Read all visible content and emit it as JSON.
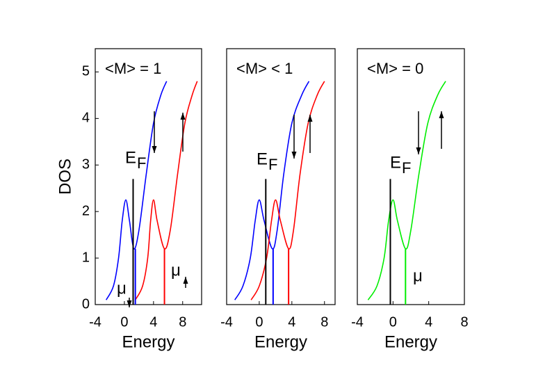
{
  "chart_data": [
    {
      "type": "line",
      "title": "<M> = 1",
      "xlabel": "Energy",
      "ylabel": "DOS",
      "xlim": [
        -4,
        10.6
      ],
      "ylim": [
        0,
        5.5
      ],
      "xticks": [
        -4,
        0,
        4,
        8
      ],
      "yticks": [
        0,
        1,
        2,
        3,
        4,
        5
      ],
      "series": [
        {
          "color": "#0000ff",
          "x": [
            -2.5,
            -1.5,
            -0.8,
            -0.3,
            0.2,
            0.7,
            1.3,
            2,
            3,
            4,
            5,
            5.8
          ],
          "values": [
            0.1,
            0.4,
            1.0,
            1.8,
            2.25,
            1.8,
            1.2,
            1.6,
            2.8,
            3.9,
            4.5,
            4.8
          ]
        },
        {
          "color": "#ff0000",
          "x": [
            1.5,
            2.5,
            3.2,
            3.6,
            4,
            4.5,
            5.5,
            6.3,
            7.3,
            8.3,
            9.3,
            10
          ],
          "values": [
            0.1,
            0.4,
            1.0,
            1.8,
            2.25,
            1.8,
            1.2,
            1.6,
            2.8,
            3.9,
            4.5,
            4.8
          ]
        }
      ],
      "markers": [
        {
          "x": 1.2,
          "top": 2.7,
          "color": "#000000"
        },
        {
          "x": 1.5,
          "top": 1.2,
          "color": "#0000ff"
        },
        {
          "x": 5.5,
          "top": 1.2,
          "color": "#ff0000"
        }
      ],
      "annotations": [
        "E",
        "F",
        "μ",
        "μ"
      ]
    },
    {
      "type": "line",
      "title": "<M> < 1",
      "xlabel": "Energy",
      "xlim": [
        -4,
        9.3
      ],
      "ylim": [
        0,
        5.5
      ],
      "xticks": [
        -4,
        0,
        4,
        8
      ],
      "series": [
        {
          "color": "#0000ff",
          "x": [
            -3,
            -2,
            -1.1,
            -0.5,
            0,
            0.6,
            1.6,
            2.2,
            3,
            4,
            5.2,
            6.1
          ],
          "values": [
            0.1,
            0.4,
            1.0,
            1.8,
            2.25,
            1.8,
            1.2,
            1.6,
            2.8,
            3.9,
            4.5,
            4.8
          ]
        },
        {
          "color": "#ff0000",
          "x": [
            -1,
            0,
            0.9,
            1.5,
            2,
            2.6,
            3.6,
            4.2,
            5,
            6,
            7.1,
            8
          ],
          "values": [
            0.1,
            0.4,
            1.0,
            1.8,
            2.25,
            1.8,
            1.2,
            1.6,
            2.8,
            3.9,
            4.5,
            4.8
          ]
        }
      ],
      "markers": [
        {
          "x": 0.8,
          "top": 2.7,
          "color": "#000000"
        },
        {
          "x": 1.7,
          "top": 1.2,
          "color": "#0000ff"
        },
        {
          "x": 3.6,
          "top": 1.2,
          "color": "#ff0000"
        }
      ],
      "annotations": [
        "E",
        "F"
      ]
    },
    {
      "type": "line",
      "title": "<M> = 0",
      "xlabel": "Energy",
      "xlim": [
        -4,
        8
      ],
      "ylim": [
        0,
        5.5
      ],
      "xticks": [
        -4,
        0,
        4,
        8
      ],
      "series": [
        {
          "color": "#00ee00",
          "x": [
            -2.8,
            -1.8,
            -1.0,
            -0.5,
            0,
            0.5,
            1.4,
            2,
            2.9,
            3.9,
            5,
            5.9
          ],
          "values": [
            0.1,
            0.4,
            1.0,
            1.8,
            2.25,
            1.8,
            1.2,
            1.6,
            2.8,
            3.9,
            4.5,
            4.8
          ]
        }
      ],
      "markers": [
        {
          "x": -0.3,
          "top": 2.7,
          "color": "#000000"
        },
        {
          "x": 1.4,
          "top": 1.2,
          "color": "#00ee00"
        }
      ],
      "annotations": [
        "E",
        "F",
        "μ"
      ]
    }
  ]
}
